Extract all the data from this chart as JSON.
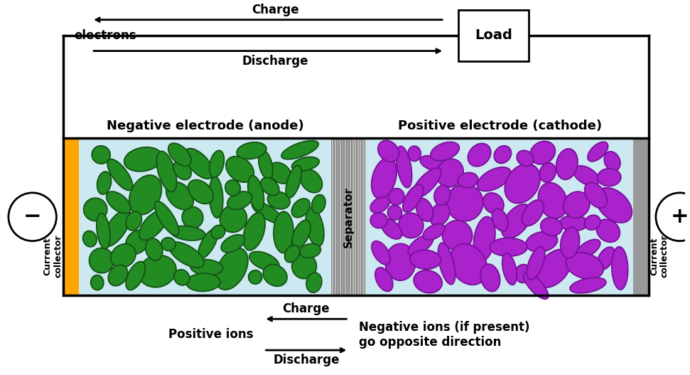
{
  "bg_color": "#ffffff",
  "anode_particle_color": "#228B22",
  "anode_particle_edge": "#145214",
  "cathode_particle_color": "#AA22CC",
  "cathode_particle_edge": "#771199",
  "orange_cc_color": "#FFA500",
  "gray_cc_color": "#999999",
  "cell_bg_color": "#cce8f0",
  "separator_bg_color": "#BBBBBB",
  "separator_stripe_color": "#888888",
  "neg_label": "Negative electrode (anode)",
  "pos_label": "Positive electrode (cathode)",
  "sep_label": "Separator",
  "left_cc_label": "Current\ncollector",
  "right_cc_label": "Current\ncollector",
  "load_label": "Load",
  "electrons_label": "electrons",
  "charge_top_label": "Charge",
  "discharge_top_label": "Discharge",
  "charge_bot_label": "Charge",
  "discharge_bot_label": "Discharge",
  "pos_ions_label": "Positive ions",
  "neg_ions_label": "Negative ions (if present)\ngo opposite direction"
}
